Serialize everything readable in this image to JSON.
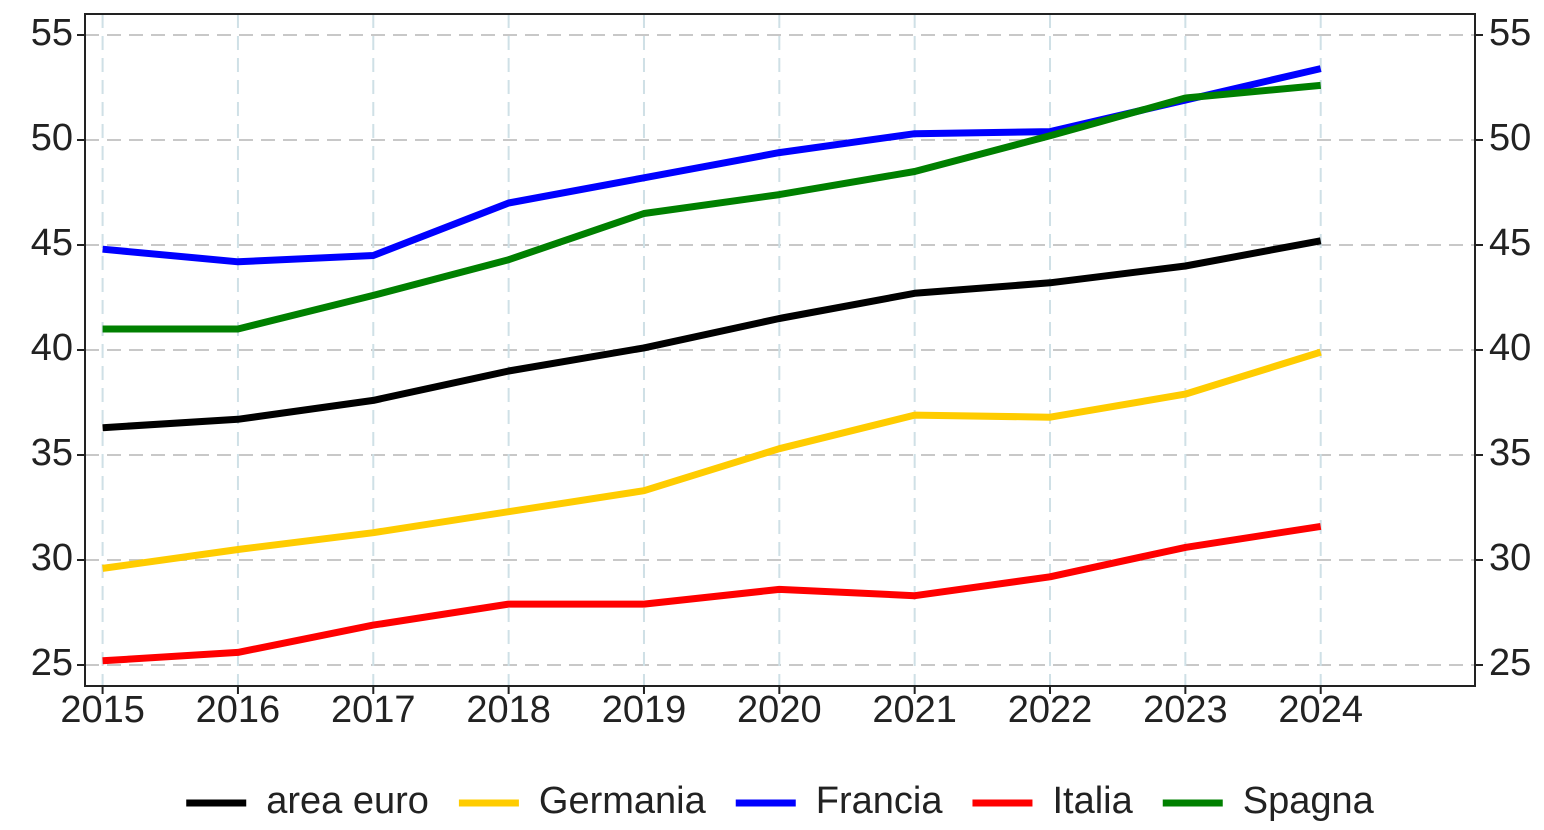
{
  "chart_data": {
    "type": "line",
    "x": [
      2015,
      2016,
      2017,
      2018,
      2019,
      2020,
      2021,
      2022,
      2023,
      2024
    ],
    "xlim": [
      2014.87,
      2025.14
    ],
    "xticks": [
      2015,
      2016,
      2017,
      2018,
      2019,
      2020,
      2021,
      2022,
      2023,
      2024
    ],
    "ylim": [
      24,
      56
    ],
    "yticks": [
      25,
      30,
      35,
      40,
      45,
      50,
      55
    ],
    "y2lim": [
      24,
      56
    ],
    "y2ticks": [
      25,
      30,
      35,
      40,
      45,
      50,
      55
    ],
    "grid": true,
    "legend": "bottom",
    "series": [
      {
        "name": "area euro",
        "color": "#000000",
        "values": [
          36.3,
          36.7,
          37.6,
          39.0,
          40.1,
          41.5,
          42.7,
          43.2,
          44.0,
          45.2
        ]
      },
      {
        "name": "Germania",
        "color": "#ffcc00",
        "values": [
          29.6,
          30.5,
          31.3,
          32.3,
          33.3,
          35.3,
          36.9,
          36.8,
          37.9,
          39.9
        ]
      },
      {
        "name": "Francia",
        "color": "#0000ff",
        "values": [
          44.8,
          44.2,
          44.5,
          47.0,
          48.2,
          49.4,
          50.3,
          50.4,
          51.9,
          53.4
        ]
      },
      {
        "name": "Italia",
        "color": "#ff0000",
        "values": [
          25.2,
          25.6,
          26.9,
          27.9,
          27.9,
          28.6,
          28.3,
          29.2,
          30.6,
          31.6
        ]
      },
      {
        "name": "Spagna",
        "color": "#008000",
        "values": [
          41.0,
          41.0,
          42.6,
          44.3,
          46.5,
          47.4,
          48.5,
          50.2,
          52.0,
          52.6
        ]
      }
    ]
  }
}
